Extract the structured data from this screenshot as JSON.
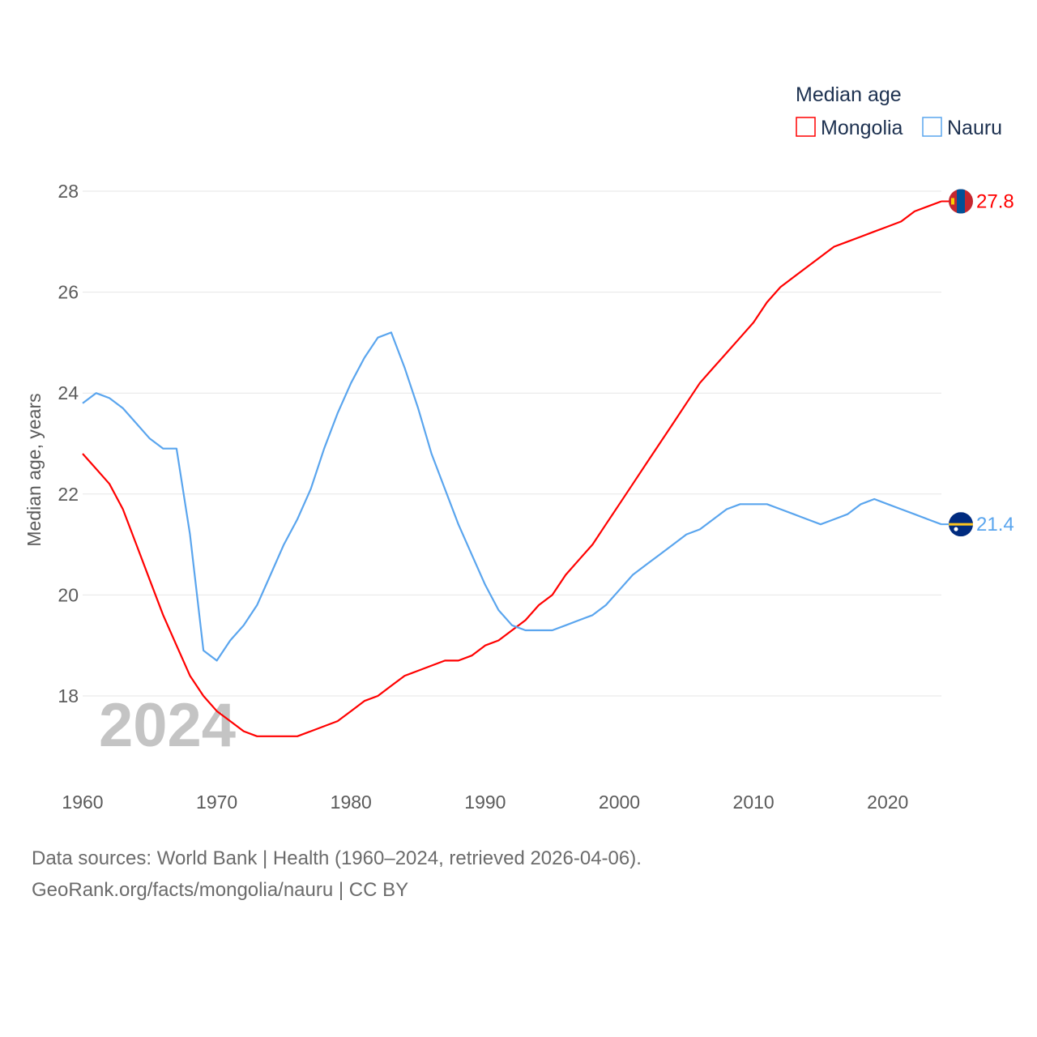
{
  "chart_data": {
    "type": "line",
    "ylabel": "Median age, years",
    "legend_title": "Median age",
    "legend_position": "top-right",
    "watermark_year": "2024",
    "xlim": [
      1960,
      2024
    ],
    "ylim": [
      16.8,
      28.4
    ],
    "x_ticks": [
      "1960",
      "1970",
      "1980",
      "1990",
      "2000",
      "2010",
      "2020"
    ],
    "y_ticks": [
      "18",
      "20",
      "22",
      "24",
      "26",
      "28"
    ],
    "grid": true,
    "x": [
      1960,
      1961,
      1962,
      1963,
      1964,
      1965,
      1966,
      1967,
      1968,
      1969,
      1970,
      1971,
      1972,
      1973,
      1974,
      1975,
      1976,
      1977,
      1978,
      1979,
      1980,
      1981,
      1982,
      1983,
      1984,
      1985,
      1986,
      1987,
      1988,
      1989,
      1990,
      1991,
      1992,
      1993,
      1994,
      1995,
      1996,
      1997,
      1998,
      1999,
      2000,
      2001,
      2002,
      2003,
      2004,
      2005,
      2006,
      2007,
      2008,
      2009,
      2010,
      2011,
      2012,
      2013,
      2014,
      2015,
      2016,
      2017,
      2018,
      2019,
      2020,
      2021,
      2022,
      2023,
      2024
    ],
    "series": [
      {
        "name": "Mongolia",
        "color": "#ff0000",
        "end_label": "27.8",
        "values": [
          22.8,
          22.5,
          22.2,
          21.7,
          21.0,
          20.3,
          19.6,
          19.0,
          18.4,
          18.0,
          17.7,
          17.5,
          17.3,
          17.2,
          17.2,
          17.2,
          17.2,
          17.3,
          17.4,
          17.5,
          17.7,
          17.9,
          18.0,
          18.2,
          18.4,
          18.5,
          18.6,
          18.7,
          18.7,
          18.8,
          19.0,
          19.1,
          19.3,
          19.5,
          19.8,
          20.0,
          20.4,
          20.7,
          21.0,
          21.4,
          21.8,
          22.2,
          22.6,
          23.0,
          23.4,
          23.8,
          24.2,
          24.5,
          24.8,
          25.1,
          25.4,
          25.8,
          26.1,
          26.3,
          26.5,
          26.7,
          26.9,
          27.0,
          27.1,
          27.2,
          27.3,
          27.4,
          27.6,
          27.7,
          27.8
        ]
      },
      {
        "name": "Nauru",
        "color": "#5aa5ee",
        "end_label": "21.4",
        "values": [
          23.8,
          24.0,
          23.9,
          23.7,
          23.4,
          23.1,
          22.9,
          22.9,
          21.2,
          18.9,
          18.7,
          19.1,
          19.4,
          19.8,
          20.4,
          21.0,
          21.5,
          22.1,
          22.9,
          23.6,
          24.2,
          24.7,
          25.1,
          25.2,
          24.5,
          23.7,
          22.8,
          22.1,
          21.4,
          20.8,
          20.2,
          19.7,
          19.4,
          19.3,
          19.3,
          19.3,
          19.4,
          19.5,
          19.6,
          19.8,
          20.1,
          20.4,
          20.6,
          20.8,
          21.0,
          21.2,
          21.3,
          21.5,
          21.7,
          21.8,
          21.8,
          21.8,
          21.7,
          21.6,
          21.5,
          21.4,
          21.5,
          21.6,
          21.8,
          21.9,
          21.8,
          21.7,
          21.6,
          21.5,
          21.4
        ]
      }
    ]
  },
  "footer": {
    "sources": "Data sources: World Bank | Health (1960–2024, retrieved 2026-04-06).",
    "credit": "GeoRank.org/facts/mongolia/nauru | CC BY"
  }
}
